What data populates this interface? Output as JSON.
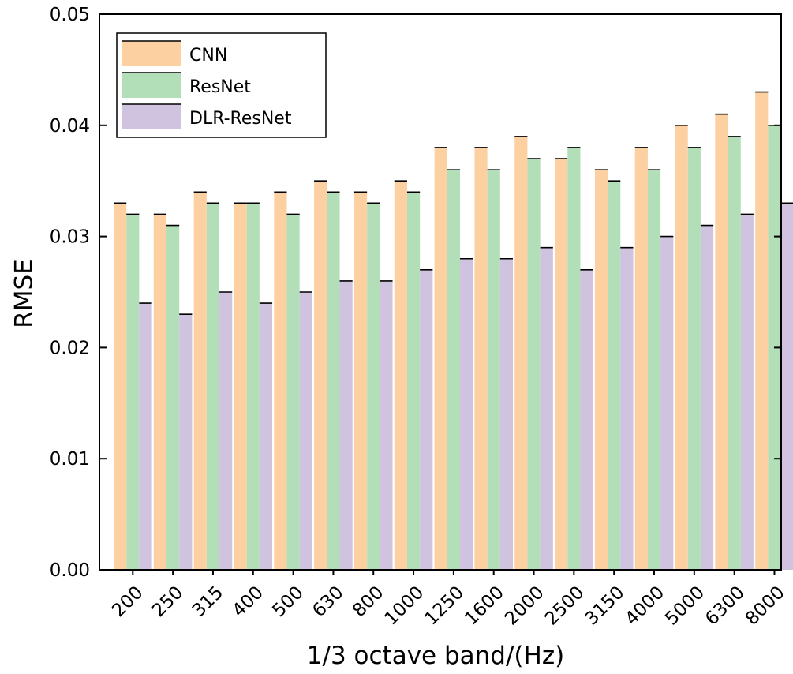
{
  "chart_data": {
    "type": "bar",
    "title": "",
    "xlabel": "1/3 octave band/(Hz)",
    "ylabel": "RMSE",
    "ylim": [
      0,
      0.05
    ],
    "yticks": [
      "0.00",
      "0.01",
      "0.02",
      "0.03",
      "0.04",
      "0.05"
    ],
    "ytick_values": [
      0,
      0.01,
      0.02,
      0.03,
      0.04,
      0.05
    ],
    "grid": false,
    "legend_position": "top-left",
    "categories": [
      "200",
      "250",
      "315",
      "400",
      "500",
      "630",
      "800",
      "1000",
      "1250",
      "1600",
      "2000",
      "2500",
      "3150",
      "4000",
      "5000",
      "6300",
      "8000"
    ],
    "series": [
      {
        "name": "CNN",
        "color": "#fdd0a2",
        "values": [
          0.033,
          0.032,
          0.034,
          0.033,
          0.034,
          0.035,
          0.034,
          0.035,
          0.038,
          0.038,
          0.039,
          0.037,
          0.036,
          0.038,
          0.04,
          0.041,
          0.043
        ]
      },
      {
        "name": "ResNet",
        "color": "#b2dfb8",
        "values": [
          0.032,
          0.031,
          0.033,
          0.033,
          0.032,
          0.034,
          0.033,
          0.034,
          0.036,
          0.036,
          0.037,
          0.038,
          0.035,
          0.036,
          0.038,
          0.039,
          0.04
        ]
      },
      {
        "name": "DLR-ResNet",
        "color": "#cfc3e0",
        "values": [
          0.024,
          0.023,
          0.025,
          0.024,
          0.025,
          0.026,
          0.026,
          0.027,
          0.028,
          0.028,
          0.029,
          0.027,
          0.029,
          0.03,
          0.031,
          0.032,
          0.033
        ]
      }
    ]
  }
}
